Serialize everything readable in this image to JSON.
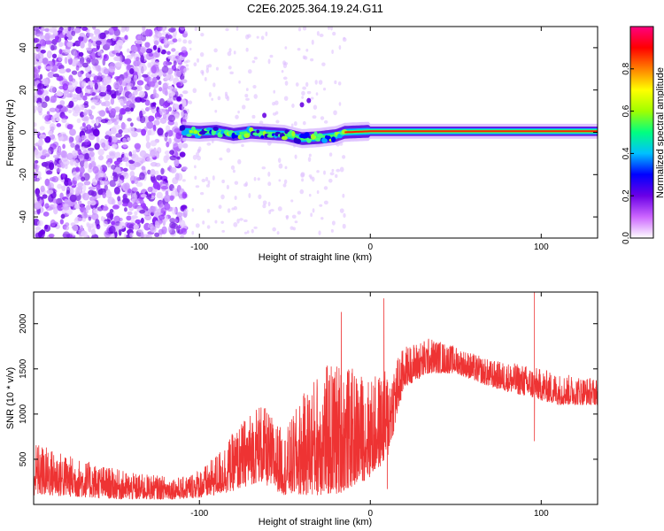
{
  "chart_data": [
    {
      "type": "heatmap",
      "title": "C2E6.2025.364.19.24.G11",
      "xlabel": "Height of straight line (km)",
      "ylabel": "Frequency (Hz)",
      "xlim": [
        -197,
        133
      ],
      "ylim": [
        -50,
        50
      ],
      "xticks": [
        -100,
        0,
        100
      ],
      "yticks": [
        -40,
        -20,
        0,
        20,
        40
      ],
      "colorbar": {
        "label": "Normalized spectral amplitude",
        "range": [
          0,
          1
        ],
        "ticks": [
          0.0,
          0.2,
          0.4,
          0.6,
          0.8
        ],
        "stops": [
          "#ffffff",
          "#cc66ff",
          "#6a00e6",
          "#0000ff",
          "#00c0ff",
          "#00ff80",
          "#a0ff00",
          "#ffff00",
          "#ff8000",
          "#ff0000",
          "#ff0080"
        ]
      },
      "noise_region_km": [
        -197,
        -110
      ],
      "ridge": [
        {
          "km": -110,
          "hz": 0.5
        },
        {
          "km": -100,
          "hz": 0.0
        },
        {
          "km": -90,
          "hz": 0.5
        },
        {
          "km": -80,
          "hz": -1.0
        },
        {
          "km": -70,
          "hz": 0.0
        },
        {
          "km": -60,
          "hz": -0.5
        },
        {
          "km": -50,
          "hz": -1.0
        },
        {
          "km": -40,
          "hz": -3.0
        },
        {
          "km": -30,
          "hz": -2.5
        },
        {
          "km": -20,
          "hz": -1.5
        },
        {
          "km": -15,
          "hz": 0.0
        },
        {
          "km": 0,
          "hz": 0.5
        },
        {
          "km": 50,
          "hz": 0.5
        },
        {
          "km": 133,
          "hz": 0.5
        }
      ]
    },
    {
      "type": "line",
      "xlabel": "Height of straight line (km)",
      "ylabel": "SNR (10 * v/v)",
      "xlim": [
        -197,
        133
      ],
      "ylim": [
        0,
        2350
      ],
      "xticks": [
        -100,
        0,
        100
      ],
      "yticks": [
        500,
        1000,
        1500,
        2000
      ],
      "color": "#ee3333",
      "envelope": [
        {
          "km": -197,
          "lo": 100,
          "hi": 700
        },
        {
          "km": -170,
          "lo": 80,
          "hi": 500
        },
        {
          "km": -140,
          "lo": 50,
          "hi": 350
        },
        {
          "km": -110,
          "lo": 60,
          "hi": 300
        },
        {
          "km": -95,
          "lo": 80,
          "hi": 450
        },
        {
          "km": -80,
          "lo": 150,
          "hi": 800
        },
        {
          "km": -65,
          "lo": 250,
          "hi": 1150
        },
        {
          "km": -50,
          "lo": 100,
          "hi": 800
        },
        {
          "km": -40,
          "lo": 100,
          "hi": 1200
        },
        {
          "km": -30,
          "lo": 100,
          "hi": 1500
        },
        {
          "km": -20,
          "lo": 100,
          "hi": 1600
        },
        {
          "km": -10,
          "lo": 200,
          "hi": 1500
        },
        {
          "km": 0,
          "lo": 300,
          "hi": 1400
        },
        {
          "km": 10,
          "lo": 500,
          "hi": 1500
        },
        {
          "km": 20,
          "lo": 1300,
          "hi": 1750
        },
        {
          "km": 35,
          "lo": 1450,
          "hi": 1850
        },
        {
          "km": 50,
          "lo": 1450,
          "hi": 1750
        },
        {
          "km": 70,
          "lo": 1300,
          "hi": 1600
        },
        {
          "km": 90,
          "lo": 1200,
          "hi": 1550
        },
        {
          "km": 110,
          "lo": 1100,
          "hi": 1450
        },
        {
          "km": 133,
          "lo": 1100,
          "hi": 1400
        }
      ],
      "spikes": [
        {
          "km": -17,
          "value": 2130
        },
        {
          "km": 8,
          "value": 2280
        },
        {
          "km": 96,
          "value": 2350
        },
        {
          "km": 96,
          "value": 700
        },
        {
          "km": 10,
          "value": 170
        }
      ]
    }
  ]
}
